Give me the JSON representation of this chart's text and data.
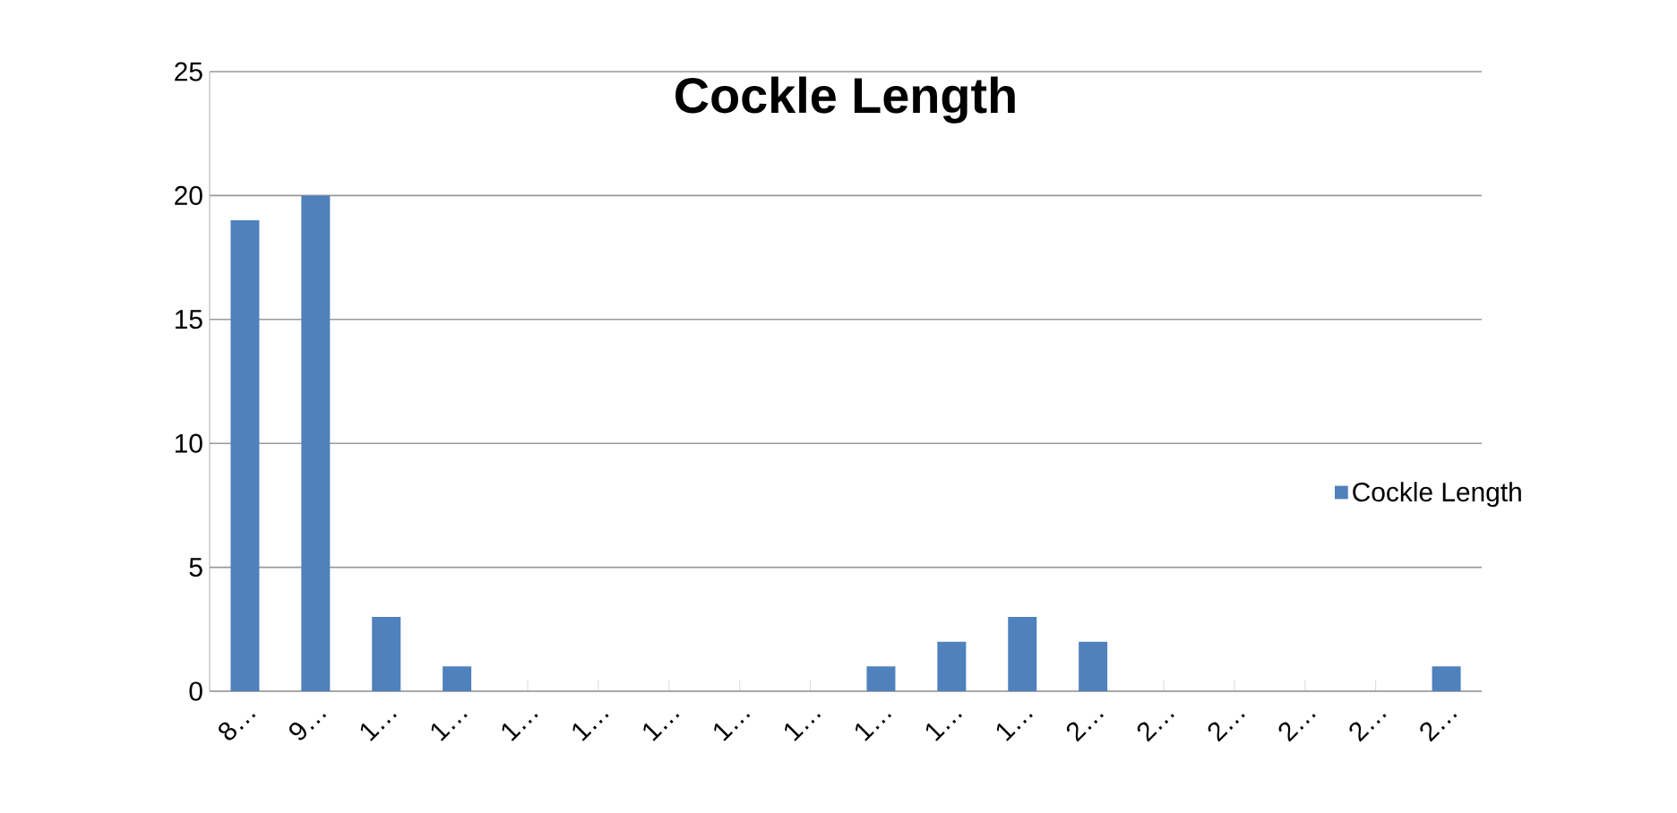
{
  "chart_data": {
    "type": "bar",
    "title": "Cockle Length",
    "categories": [
      "8…",
      "9…",
      "1…",
      "1…",
      "1…",
      "1…",
      "1…",
      "1…",
      "1…",
      "1…",
      "1…",
      "1…",
      "2…",
      "2…",
      "2…",
      "2…",
      "2…",
      "2…"
    ],
    "series": [
      {
        "name": "Cockle Length",
        "color": "#4f81bd",
        "values": [
          19,
          20,
          3,
          1,
          0,
          0,
          0,
          0,
          0,
          1,
          2,
          3,
          2,
          0,
          0,
          0,
          0,
          1
        ]
      }
    ],
    "ylim": [
      0,
      25
    ],
    "yticks": [
      0,
      5,
      10,
      15,
      20,
      25
    ],
    "grid": "y",
    "legend": "right"
  }
}
